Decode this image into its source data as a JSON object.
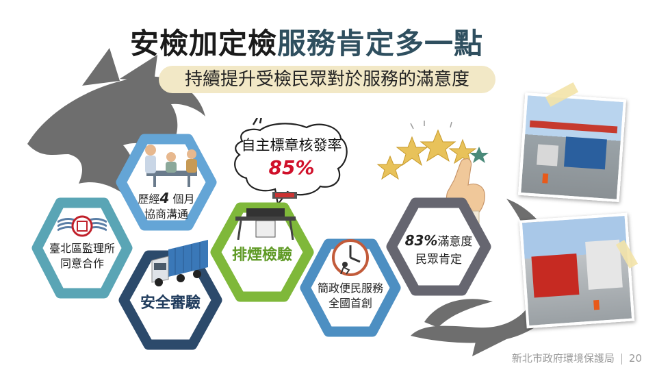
{
  "title": {
    "part1": "安檢加定檢",
    "part2": "服務肯定多一點"
  },
  "subtitle": "持續提升受檢民眾對於服務的滿意度",
  "bubble": {
    "label": "自主標章核發率",
    "value": "85%"
  },
  "hexes": {
    "monitor": {
      "line1": "臺北區監理所",
      "line2": "同意合作"
    },
    "negotiation": {
      "pre": "歷經",
      "num": "4",
      "post": " 個月",
      "line2": "協商溝通"
    },
    "safety": {
      "label": "安全審驗"
    },
    "smoke": {
      "label": "排煙檢驗"
    },
    "simplify": {
      "line1": "簡政便民服務",
      "line2": "全國首創"
    },
    "satisfaction": {
      "value": "83%",
      "suffix": "滿意度",
      "line2": "民眾肯定"
    }
  },
  "footer": {
    "org": "新北市政府環境保護局",
    "page": "20"
  },
  "colors": {
    "title_dark": "#1a1a1a",
    "title_accent": "#2f4f5f",
    "hex_teal": "#5aa5b5",
    "hex_light_blue": "#64a5d6",
    "hex_navy": "#2c4a6b",
    "hex_green": "#7fb83a",
    "hex_blue": "#4d8fc2",
    "hex_gray": "#666670",
    "bubble_red": "#d0102a"
  }
}
